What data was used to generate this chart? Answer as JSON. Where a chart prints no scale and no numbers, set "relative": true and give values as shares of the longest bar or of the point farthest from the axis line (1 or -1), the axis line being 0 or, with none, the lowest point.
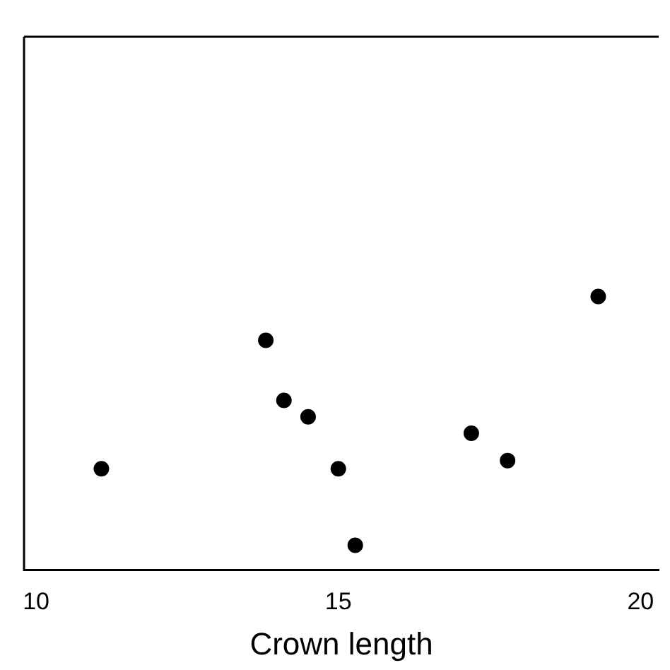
{
  "chart_data": {
    "type": "scatter",
    "xlabel": "Crown length",
    "relative": true,
    "marker": "circle",
    "x": [
      11.08,
      13.8,
      14.1,
      14.5,
      15.0,
      15.28,
      17.2,
      17.8,
      19.3
    ],
    "values": [
      0.37,
      0.84,
      0.62,
      0.56,
      0.37,
      0.09,
      0.5,
      0.4,
      1
    ],
    "color": "#000000",
    "xlim": [
      9.8,
      20.3
    ],
    "xticks": [
      10,
      15,
      20
    ]
  }
}
